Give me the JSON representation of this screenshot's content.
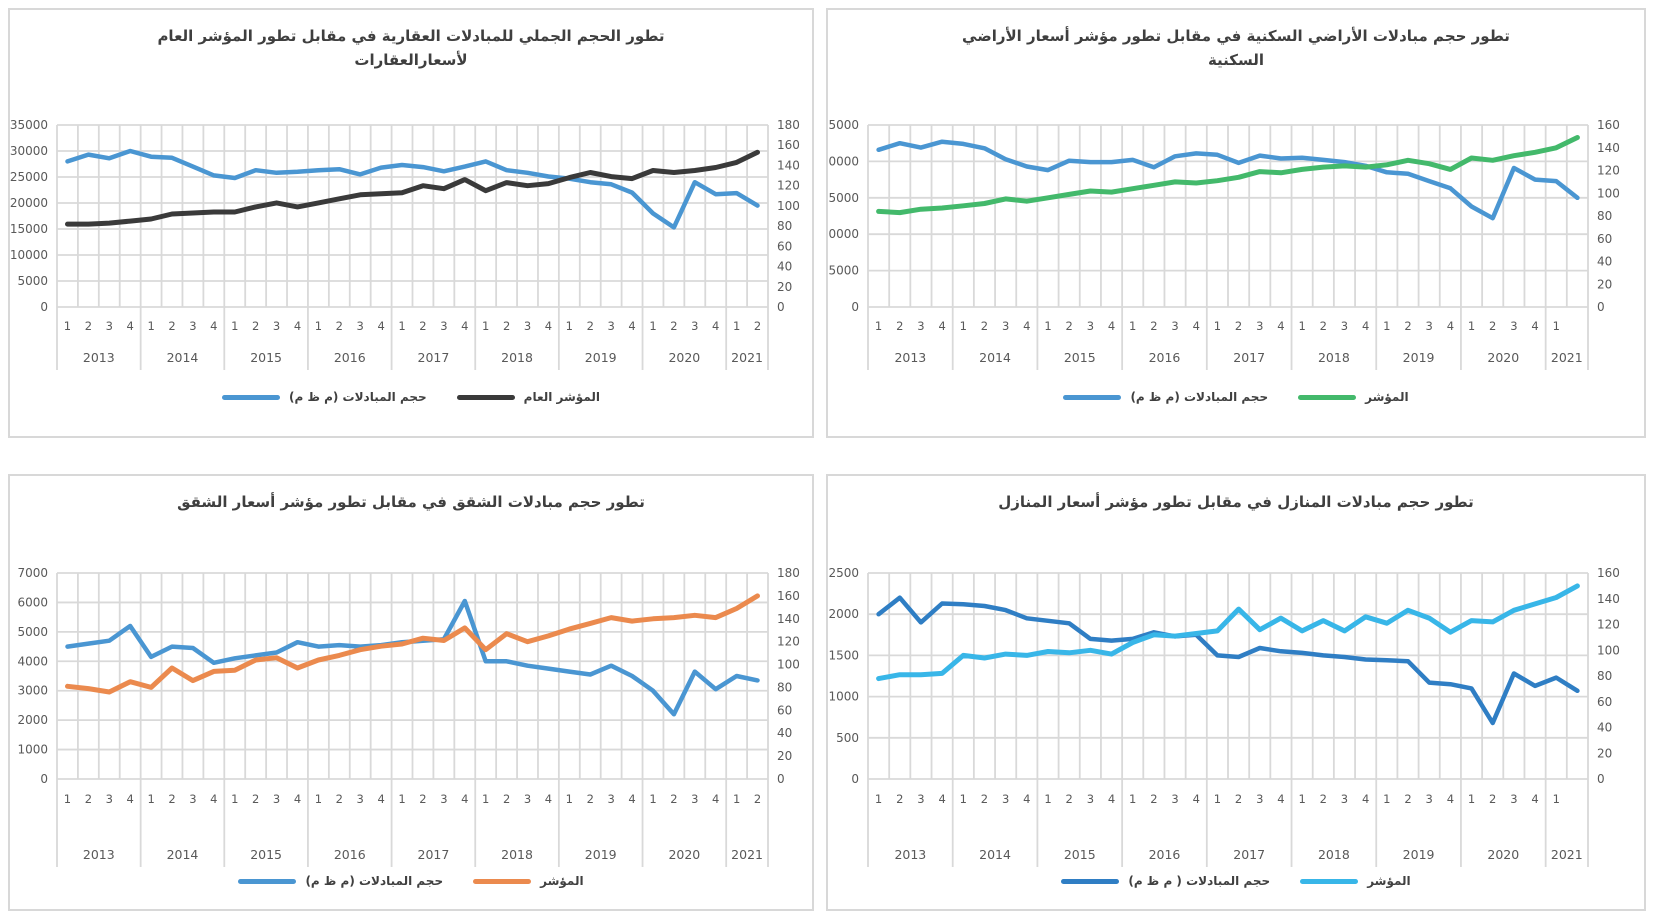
{
  "page": {
    "background": "#ffffff",
    "panel_border": "#d8d8d8",
    "gridline_color": "#d9d9d9",
    "tick_color": "#595959",
    "title_color": "#3f3f3f"
  },
  "chart_data": [
    {
      "id": "total-real-estate-volume-vs-general-index",
      "type": "line",
      "title_lines": [
        "تطور الحجم الجملي للمبادلات العقارية في مقابل تطور المؤشر العام",
        "لأسعارالعقارات"
      ],
      "legend_position": "bottom",
      "grid": true,
      "left_axis": {
        "min": 0,
        "max": 35000,
        "step": 5000
      },
      "right_axis": {
        "min": 0,
        "max": 180,
        "step": 20
      },
      "years": [
        {
          "label": "2013",
          "quarters": [
            "1",
            "2",
            "3",
            "4"
          ]
        },
        {
          "label": "2014",
          "quarters": [
            "1",
            "2",
            "3",
            "4"
          ]
        },
        {
          "label": "2015",
          "quarters": [
            "1",
            "2",
            "3",
            "4"
          ]
        },
        {
          "label": "2016",
          "quarters": [
            "1",
            "2",
            "3",
            "4"
          ]
        },
        {
          "label": "2017",
          "quarters": [
            "1",
            "2",
            "3",
            "4"
          ]
        },
        {
          "label": "2018",
          "quarters": [
            "1",
            "2",
            "3",
            "4"
          ]
        },
        {
          "label": "2019",
          "quarters": [
            "1",
            "2",
            "3",
            "4"
          ]
        },
        {
          "label": "2020",
          "quarters": [
            "1",
            "2",
            "3",
            "4"
          ]
        },
        {
          "label": "2021",
          "quarters": [
            "1",
            "2"
          ]
        }
      ],
      "series": [
        {
          "name": "حجم المبادلات (م ظ م)",
          "axis": "left",
          "color": "#4a96d2",
          "values": [
            28000,
            29300,
            28600,
            30000,
            28900,
            28700,
            27000,
            25300,
            24800,
            26300,
            25800,
            26000,
            26300,
            26500,
            25500,
            26800,
            27300,
            26900,
            26100,
            27000,
            28000,
            26300,
            25800,
            25100,
            24700,
            24000,
            23600,
            22000,
            18000,
            15300,
            24000,
            21700,
            21900,
            19500
          ]
        },
        {
          "name": "المؤشر العام",
          "axis": "right",
          "color": "#3a3a3a",
          "values": [
            82,
            82,
            83,
            85,
            87,
            92,
            93,
            94,
            94,
            99,
            103,
            99,
            103,
            107,
            111,
            112,
            113,
            120,
            117,
            126,
            115,
            123,
            120,
            122,
            128,
            133,
            129,
            127,
            135,
            133,
            135,
            138,
            143,
            153
          ]
        }
      ]
    },
    {
      "id": "residential-land-volume-vs-index",
      "type": "line",
      "title_lines": [
        "تطور حجم مبادلات الأراضي السكنية في مقابل تطور مؤشر أسعار الأراضي",
        "السكنية"
      ],
      "legend_position": "bottom",
      "grid": true,
      "left_axis": {
        "min": 0,
        "max": 25000,
        "step": 5000
      },
      "right_axis": {
        "min": 0,
        "max": 160,
        "step": 20
      },
      "years": [
        {
          "label": "2013",
          "quarters": [
            "1",
            "2",
            "3",
            "4"
          ]
        },
        {
          "label": "2014",
          "quarters": [
            "1",
            "2",
            "3",
            "4"
          ]
        },
        {
          "label": "2015",
          "quarters": [
            "1",
            "2",
            "3",
            "4"
          ]
        },
        {
          "label": "2016",
          "quarters": [
            "1",
            "2",
            "3",
            "4"
          ]
        },
        {
          "label": "2017",
          "quarters": [
            "1",
            "2",
            "3",
            "4"
          ]
        },
        {
          "label": "2018",
          "quarters": [
            "1",
            "2",
            "3",
            "4"
          ]
        },
        {
          "label": "2019",
          "quarters": [
            "1",
            "2",
            "3",
            "4"
          ]
        },
        {
          "label": "2020",
          "quarters": [
            "1",
            "2",
            "3",
            "4"
          ]
        },
        {
          "label": "2021",
          "quarters": [
            "1",
            ""
          ]
        }
      ],
      "series": [
        {
          "name": "حجم المبادلات (م ظ م)",
          "axis": "left",
          "color": "#4a96d2",
          "values": [
            21600,
            22500,
            21900,
            22700,
            22400,
            21800,
            20300,
            19300,
            18800,
            20100,
            19900,
            19900,
            20200,
            19200,
            20700,
            21100,
            20900,
            19800,
            20800,
            20400,
            20500,
            20200,
            19900,
            19400,
            18500,
            18300,
            17300,
            16300,
            13800,
            12200,
            19100,
            17500,
            17300,
            15000
          ]
        },
        {
          "name": "المؤشر",
          "axis": "right",
          "color": "#43b96b",
          "values": [
            84,
            83,
            86,
            87,
            89,
            91,
            95,
            93,
            96,
            99,
            102,
            101,
            104,
            107,
            110,
            109,
            111,
            114,
            119,
            118,
            121,
            123,
            124,
            123,
            125,
            129,
            126,
            121,
            131,
            129,
            133,
            136,
            140,
            149
          ]
        }
      ]
    },
    {
      "id": "apartment-volume-vs-index",
      "type": "line",
      "title_lines": [
        "تطور حجم مبادلات الشقق في مقابل تطور مؤشر أسعار الشقق"
      ],
      "legend_position": "bottom",
      "grid": true,
      "left_axis": {
        "min": 0,
        "max": 7000,
        "step": 1000
      },
      "right_axis": {
        "min": 0,
        "max": 180,
        "step": 20
      },
      "years": [
        {
          "label": "2013",
          "quarters": [
            "1",
            "2",
            "3",
            "4"
          ]
        },
        {
          "label": "2014",
          "quarters": [
            "1",
            "2",
            "3",
            "4"
          ]
        },
        {
          "label": "2015",
          "quarters": [
            "1",
            "2",
            "3",
            "4"
          ]
        },
        {
          "label": "2016",
          "quarters": [
            "1",
            "2",
            "3",
            "4"
          ]
        },
        {
          "label": "2017",
          "quarters": [
            "1",
            "2",
            "3",
            "4"
          ]
        },
        {
          "label": "2018",
          "quarters": [
            "1",
            "2",
            "3",
            "4"
          ]
        },
        {
          "label": "2019",
          "quarters": [
            "1",
            "2",
            "3",
            "4"
          ]
        },
        {
          "label": "2020",
          "quarters": [
            "1",
            "2",
            "3",
            "4"
          ]
        },
        {
          "label": "2021",
          "quarters": [
            "1",
            "2"
          ]
        }
      ],
      "series": [
        {
          "name": "حجم المبادلات (م ظ م)",
          "axis": "left",
          "color": "#4a96d2",
          "values": [
            4500,
            4600,
            4700,
            5200,
            4150,
            4500,
            4450,
            3950,
            4100,
            4200,
            4300,
            4650,
            4500,
            4550,
            4500,
            4550,
            4650,
            4700,
            4750,
            6050,
            4000,
            4000,
            3850,
            3750,
            3650,
            3550,
            3850,
            3500,
            3000,
            2200,
            3650,
            3050,
            3500,
            3350
          ]
        },
        {
          "name": "المؤشر",
          "axis": "right",
          "color": "#eb8a4e",
          "values": [
            81,
            79,
            76,
            85,
            80,
            97,
            86,
            94,
            95,
            104,
            106,
            97,
            104,
            108,
            113,
            116,
            118,
            123,
            121,
            132,
            113,
            127,
            120,
            125,
            131,
            136,
            141,
            138,
            140,
            141,
            143,
            141,
            149,
            160
          ]
        }
      ]
    },
    {
      "id": "house-volume-vs-index",
      "type": "line",
      "title_lines": [
        "تطور حجم مبادلات المنازل في مقابل تطور مؤشر أسعار المنازل"
      ],
      "legend_position": "bottom",
      "grid": true,
      "left_axis": {
        "min": 0,
        "max": 2500,
        "step": 500
      },
      "right_axis": {
        "min": 0,
        "max": 160,
        "step": 20
      },
      "years": [
        {
          "label": "2013",
          "quarters": [
            "1",
            "2",
            "3",
            "4"
          ]
        },
        {
          "label": "2014",
          "quarters": [
            "1",
            "2",
            "3",
            "4"
          ]
        },
        {
          "label": "2015",
          "quarters": [
            "1",
            "2",
            "3",
            "4"
          ]
        },
        {
          "label": "2016",
          "quarters": [
            "1",
            "2",
            "3",
            "4"
          ]
        },
        {
          "label": "2017",
          "quarters": [
            "1",
            "2",
            "3",
            "4"
          ]
        },
        {
          "label": "2018",
          "quarters": [
            "1",
            "2",
            "3",
            "4"
          ]
        },
        {
          "label": "2019",
          "quarters": [
            "1",
            "2",
            "3",
            "4"
          ]
        },
        {
          "label": "2020",
          "quarters": [
            "1",
            "2",
            "3",
            "4"
          ]
        },
        {
          "label": "2021",
          "quarters": [
            "1",
            ""
          ]
        }
      ],
      "series": [
        {
          "name": "حجم المبادلات ( م ظ م)",
          "axis": "left",
          "color": "#2f7ec4",
          "values": [
            2000,
            2200,
            1900,
            2130,
            2120,
            2100,
            2050,
            1950,
            1920,
            1890,
            1700,
            1680,
            1700,
            1780,
            1730,
            1750,
            1500,
            1480,
            1590,
            1550,
            1530,
            1500,
            1480,
            1450,
            1440,
            1430,
            1170,
            1150,
            1100,
            680,
            1280,
            1130,
            1230,
            1070
          ]
        },
        {
          "name": "المؤشر",
          "axis": "right",
          "color": "#38b6e8",
          "values": [
            78,
            81,
            81,
            82,
            96,
            94,
            97,
            96,
            99,
            98,
            100,
            97,
            106,
            112,
            111,
            113,
            115,
            132,
            116,
            125,
            115,
            123,
            115,
            126,
            121,
            131,
            125,
            114,
            123,
            122,
            131,
            136,
            141,
            150
          ]
        }
      ]
    }
  ]
}
